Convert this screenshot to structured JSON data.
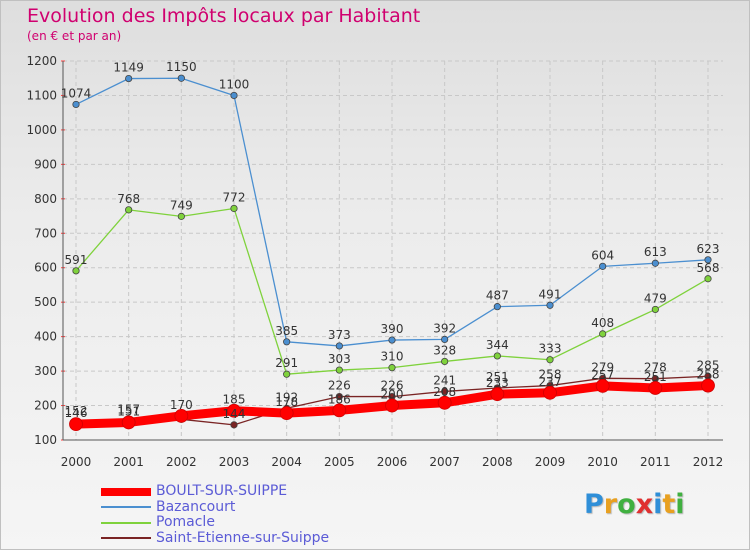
{
  "chart_data": {
    "type": "line",
    "title": "Evolution des Impôts locaux par Habitant",
    "subtitle": "(en € et par an)",
    "x": [
      "2000",
      "2001",
      "2002",
      "2003",
      "2004",
      "2005",
      "2006",
      "2007",
      "2008",
      "2009",
      "2010",
      "2011",
      "2012"
    ],
    "yticks": [
      100,
      200,
      300,
      400,
      500,
      600,
      700,
      800,
      900,
      1000,
      1100,
      1200
    ],
    "ylim": [
      100,
      1200
    ],
    "grid": true,
    "legend_position": "bottom-left",
    "series": [
      {
        "name": "BOULT-SUR-SUIPPE",
        "color": "#ff0000",
        "values": [
          146,
          151,
          170,
          185,
          178,
          186,
          200,
          208,
          233,
          237,
          257,
          251,
          258
        ],
        "labels": [
          "146",
          "151",
          "170",
          "185",
          "178",
          "186",
          "200",
          "208",
          "233",
          "237",
          "257",
          "251",
          "258"
        ]
      },
      {
        "name": "Bazancourt",
        "color": "#4b8fd0",
        "values": [
          1074,
          1149,
          1150,
          1100,
          385,
          373,
          390,
          392,
          487,
          491,
          604,
          613,
          623
        ],
        "labels": [
          "1074",
          "1149",
          "1150",
          "1100",
          "385",
          "373",
          "390",
          "392",
          "487",
          "491",
          "604",
          "613",
          "623"
        ]
      },
      {
        "name": "Pomacle",
        "color": "#7fd23c",
        "values": [
          591,
          768,
          749,
          772,
          291,
          303,
          310,
          328,
          344,
          333,
          408,
          479,
          568
        ],
        "labels": [
          "591",
          "768",
          "749",
          "772",
          "291",
          "303",
          "310",
          "328",
          "344",
          "333",
          "408",
          "479",
          "568"
        ]
      },
      {
        "name": "Saint-Etienne-sur-Suippe",
        "color": "#7a2424",
        "values": [
          152,
          157,
          160,
          144,
          192,
          226,
          226,
          241,
          251,
          258,
          279,
          278,
          285
        ],
        "labels": [
          "152",
          "157",
          "",
          "144",
          "192",
          "226",
          "226",
          "241",
          "251",
          "258",
          "279",
          "278",
          "285"
        ]
      }
    ]
  },
  "logo": {
    "letters": [
      {
        "ch": "P",
        "color": "#2f8fd8"
      },
      {
        "ch": "r",
        "color": "#e8a020"
      },
      {
        "ch": "o",
        "color": "#40b040"
      },
      {
        "ch": "x",
        "color": "#e03030"
      },
      {
        "ch": "i",
        "color": "#2f8fd8"
      },
      {
        "ch": "t",
        "color": "#e8a020"
      },
      {
        "ch": "i",
        "color": "#40b040"
      }
    ]
  }
}
